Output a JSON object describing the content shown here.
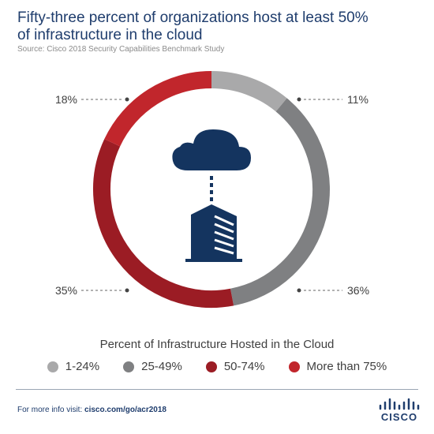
{
  "header": {
    "title": "Fifty-three percent of organizations host at least 50% of infrastructure in the cloud",
    "source": "Source: Cisco 2018 Security Capabilities Benchmark Study"
  },
  "chart_data": {
    "type": "pie",
    "variant": "donut",
    "title": "Fifty-three percent of organizations host at least 50% of infrastructure in the cloud",
    "axis_title": "Percent of Infrastructure Hosted in the Cloud",
    "categories": [
      "1-24%",
      "25-49%",
      "50-74%",
      "More than 75%"
    ],
    "values": [
      11,
      36,
      35,
      18
    ],
    "labels": [
      "11%",
      "36%",
      "35%",
      "18%"
    ],
    "colors": [
      "#a9a9aa",
      "#7f8082",
      "#9b1c24",
      "#c1262c"
    ],
    "legend_position": "bottom"
  },
  "footer": {
    "text": "For more info visit: ",
    "link": "cisco.com/go/acr2018",
    "logo_text": "CISCO"
  },
  "colors": {
    "brand_navy": "#1f3d6d",
    "cloud_navy": "#14345f"
  }
}
